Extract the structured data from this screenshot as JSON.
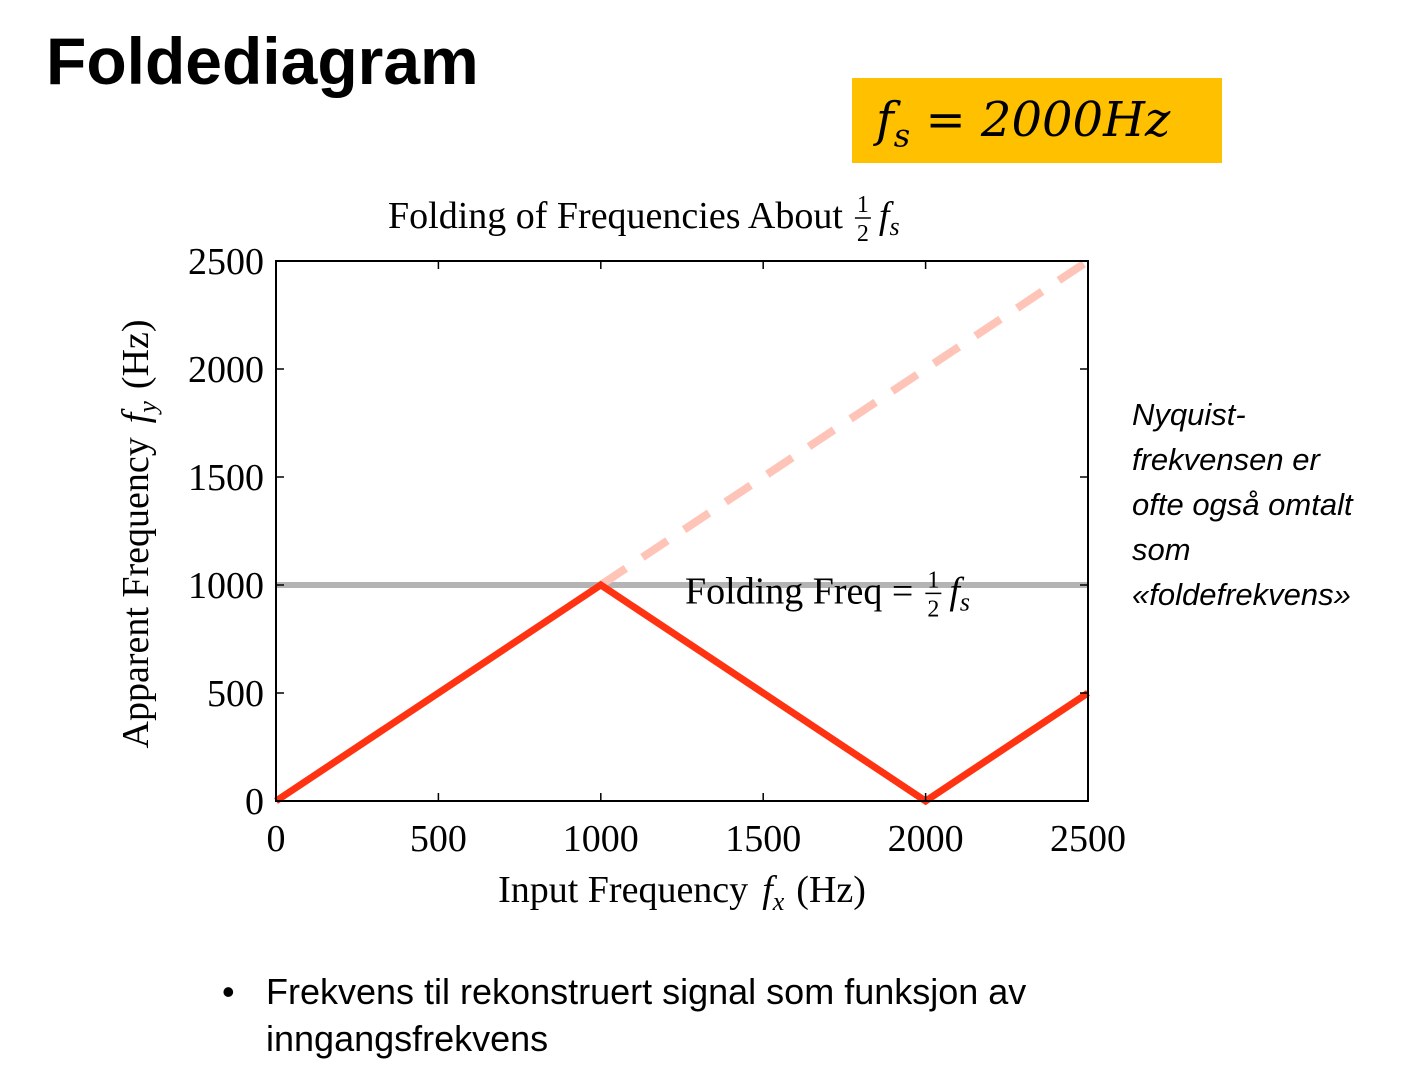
{
  "slide": {
    "title": "Foldediagram",
    "fs_box": {
      "symbol": "f",
      "subscript": "s",
      "equals": " = ",
      "value": "2000Hz",
      "bg_color": "#ffc000"
    },
    "side_note": [
      "Nyquist-",
      "frekvensen er",
      "ofte også omtalt",
      "som",
      "«foldefrekvens»"
    ],
    "bullet": {
      "marker": "•",
      "text": "Frekvens til rekonstruert signal som funksjon av inngangsfrekvens"
    }
  },
  "chart_data": {
    "type": "line",
    "title": {
      "text": "Folding of Frequencies About",
      "frac_num": "1",
      "frac_den": "2",
      "sym": "f",
      "sub": "s"
    },
    "xlabel": {
      "text": "Input Frequency",
      "sym": "f",
      "sub": "x",
      "unit": "(Hz)"
    },
    "ylabel": {
      "text": "Apparent Frequency",
      "sym": "f",
      "sub": "y",
      "unit": "(Hz)"
    },
    "xlim": [
      0,
      2500
    ],
    "ylim": [
      0,
      2500
    ],
    "xticks": [
      0,
      500,
      1000,
      1500,
      2000,
      2500
    ],
    "yticks": [
      0,
      500,
      1000,
      1500,
      2000,
      2500
    ],
    "grid": false,
    "series": [
      {
        "x": [
          0,
          1000,
          2000,
          2500
        ],
        "y": [
          0,
          1000,
          0,
          500
        ],
        "color": "#ff3311",
        "style": "solid"
      },
      {
        "x": [
          1000,
          2500
        ],
        "y": [
          1000,
          2500
        ],
        "color": "#ffc4b8",
        "style": "dashed"
      },
      {
        "x": [
          0,
          2500
        ],
        "y": [
          1000,
          1000
        ],
        "color": "#b4b4b4",
        "style": "solid"
      }
    ],
    "annotation": {
      "text": "Folding Freq =",
      "frac_num": "1",
      "frac_den": "2",
      "sym": "f",
      "sub": "s",
      "x": 1250,
      "y": 850
    }
  }
}
